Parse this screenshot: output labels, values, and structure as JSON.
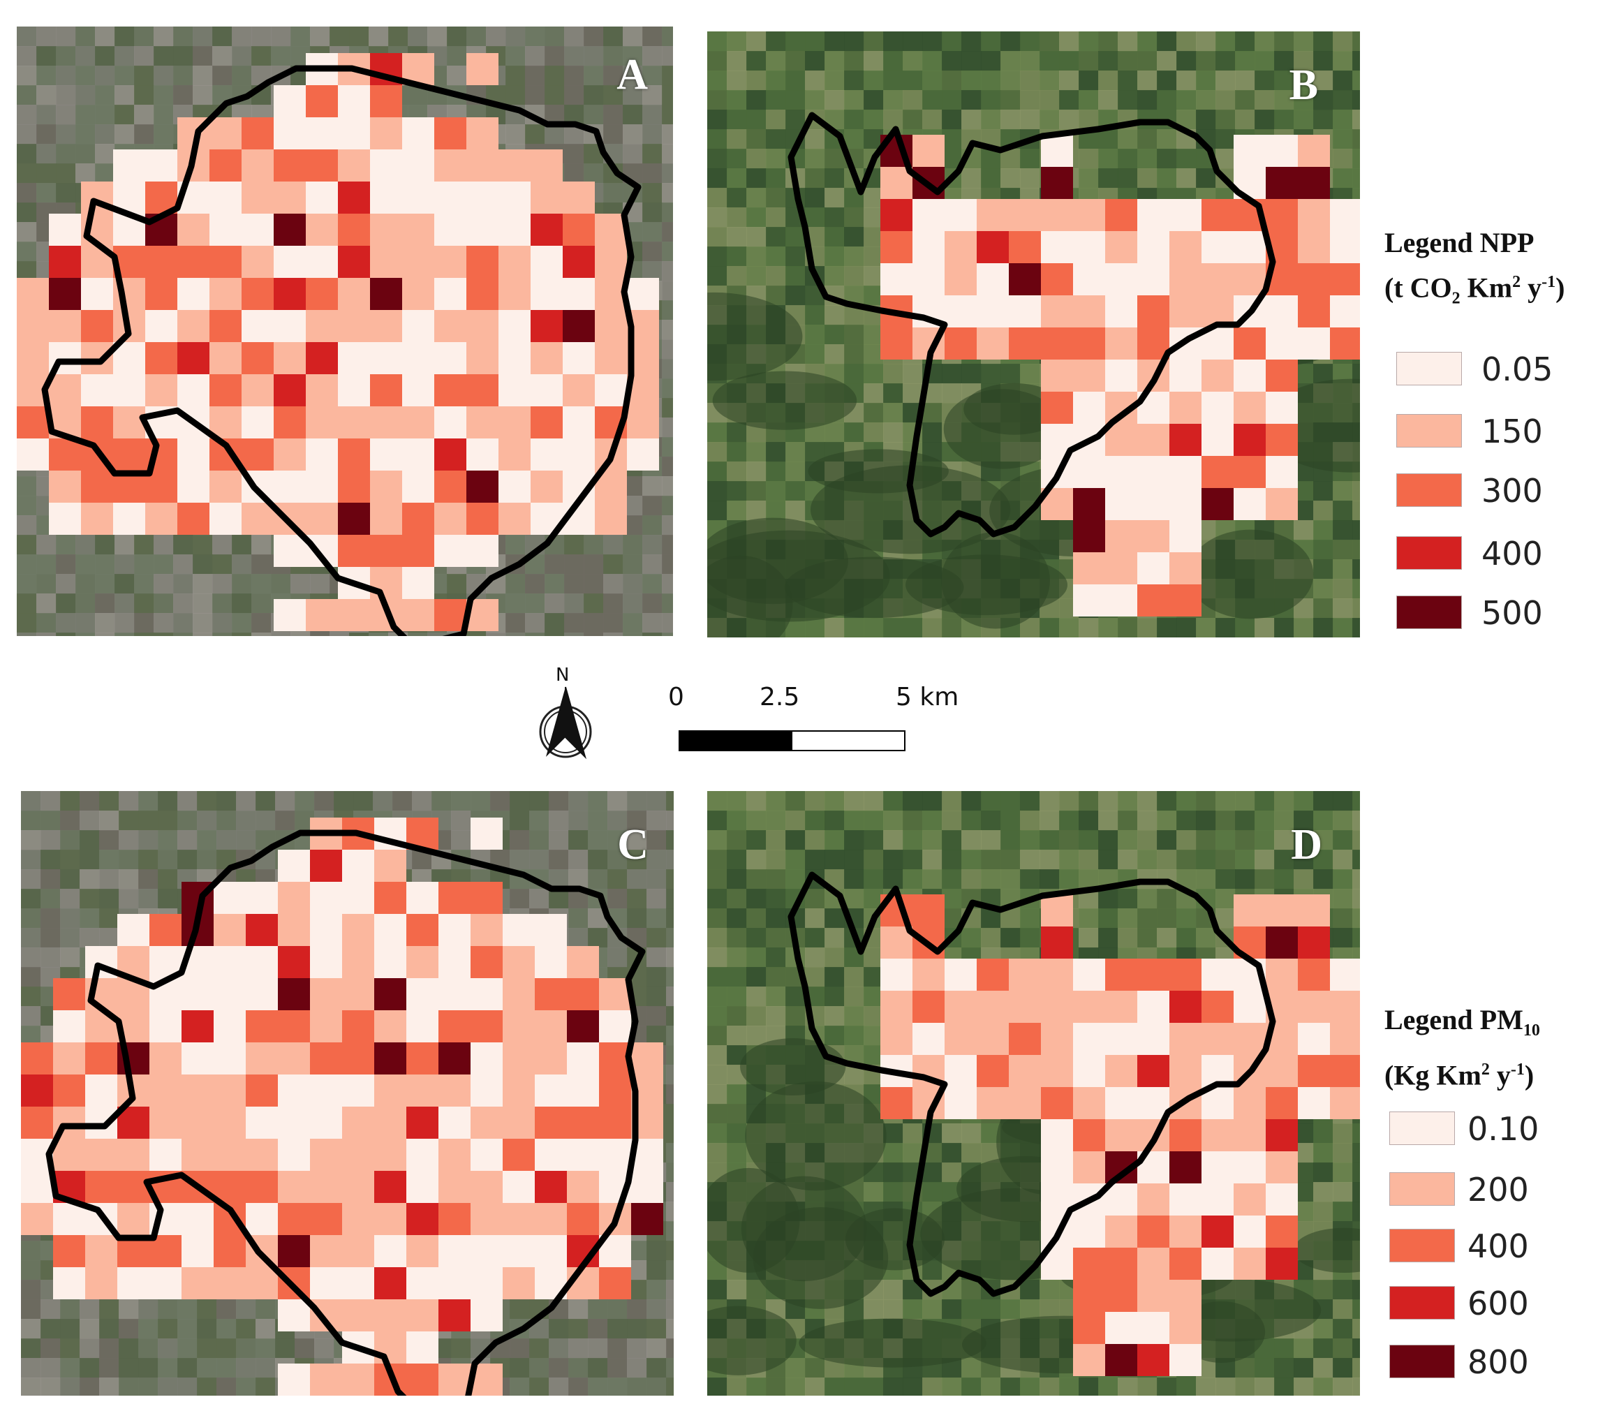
{
  "panels": [
    {
      "id": "A",
      "label": "A"
    },
    {
      "id": "B",
      "label": "B"
    },
    {
      "id": "C",
      "label": "C"
    },
    {
      "id": "D",
      "label": "D"
    }
  ],
  "legend_npp": {
    "title_line1": "Legend NPP",
    "title_line2_prefix": "(t CO",
    "title_line2_sub": "2",
    "title_line2_mid": " Km",
    "title_line2_sup1": "2",
    "title_line2_y": " y",
    "title_line2_sup2": "-1",
    "title_line2_end": ")",
    "items": [
      {
        "label": "0.05",
        "color": "#fdf0ea"
      },
      {
        "label": "150",
        "color": "#fbb79e"
      },
      {
        "label": "300",
        "color": "#f3694a"
      },
      {
        "label": "400",
        "color": "#d42121"
      },
      {
        "label": "500",
        "color": "#6b0310"
      }
    ]
  },
  "legend_pm10": {
    "title_line1_prefix": "Legend PM",
    "title_line1_sub": "10",
    "title_line2_prefix": "(Kg Km",
    "title_line2_sup1": "2",
    "title_line2_y": " y",
    "title_line2_sup2": "-1",
    "title_line2_end": ")",
    "items": [
      {
        "label": "0.10",
        "color": "#fdf0ea"
      },
      {
        "label": "200",
        "color": "#fbb79e"
      },
      {
        "label": "400",
        "color": "#f3694a"
      },
      {
        "label": "600",
        "color": "#d42121"
      },
      {
        "label": "800",
        "color": "#6b0310"
      }
    ]
  },
  "north_arrow": {
    "label": "N"
  },
  "scale_bar": {
    "labels": [
      "0",
      "2.5",
      "5 km"
    ]
  },
  "colors": {
    "boundary": "#000000",
    "ramp": [
      "#fdf0ea",
      "#fbb79e",
      "#f3694a",
      "#d42121",
      "#6b0310"
    ]
  }
}
